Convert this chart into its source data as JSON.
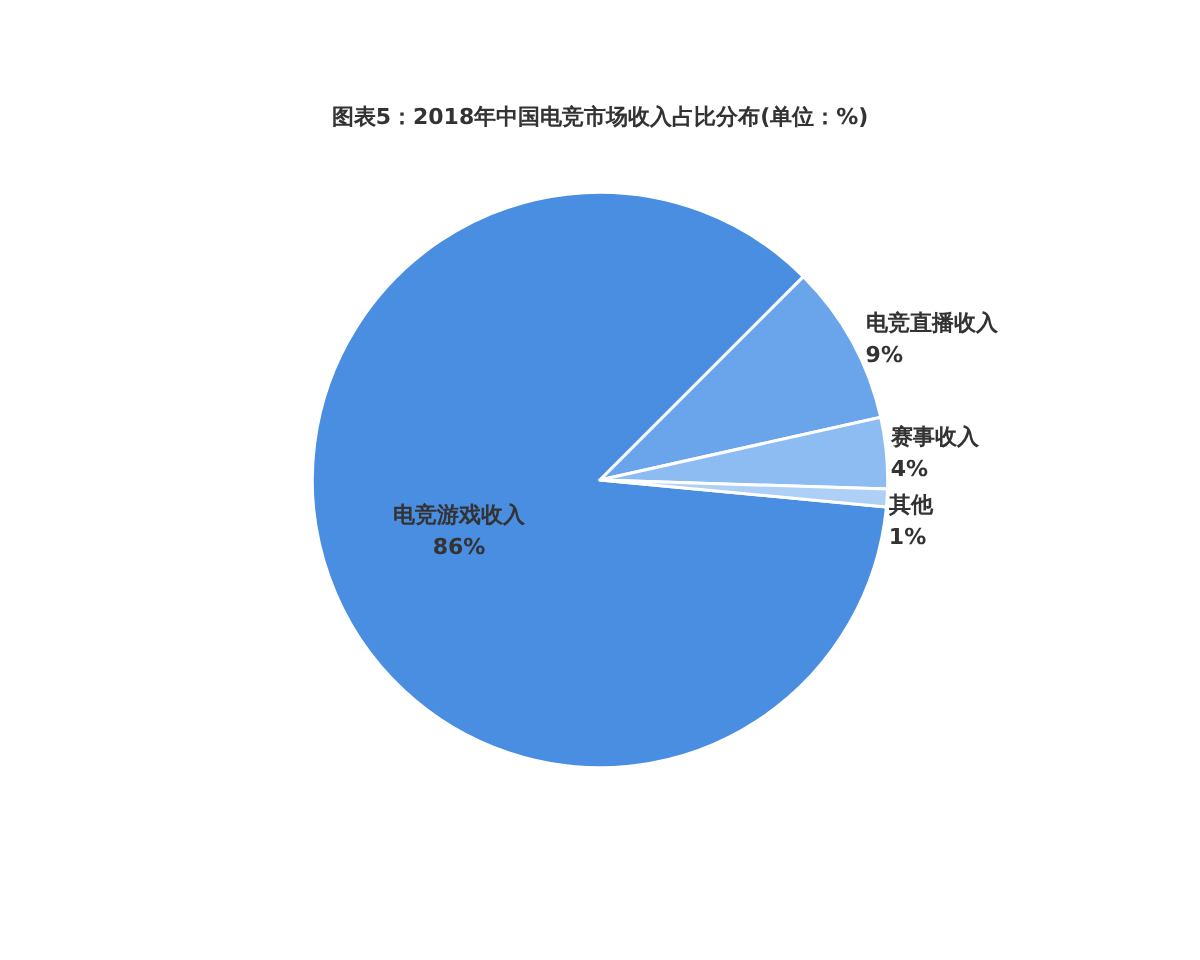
{
  "chart_data": {
    "type": "pie",
    "title": "图表5：2018年中国电竞市场收入占比分布(单位：%)",
    "categories": [
      "电竞游戏收入",
      "电竞直播收入",
      "赛事收入",
      "其他"
    ],
    "values": [
      86,
      9,
      4,
      1
    ],
    "colors": [
      "#4a8ee2",
      "#6aa5ec",
      "#8dbcf2",
      "#aecff6"
    ],
    "value_labels": [
      "86%",
      "9%",
      "4%",
      "1%"
    ],
    "legend": false
  }
}
